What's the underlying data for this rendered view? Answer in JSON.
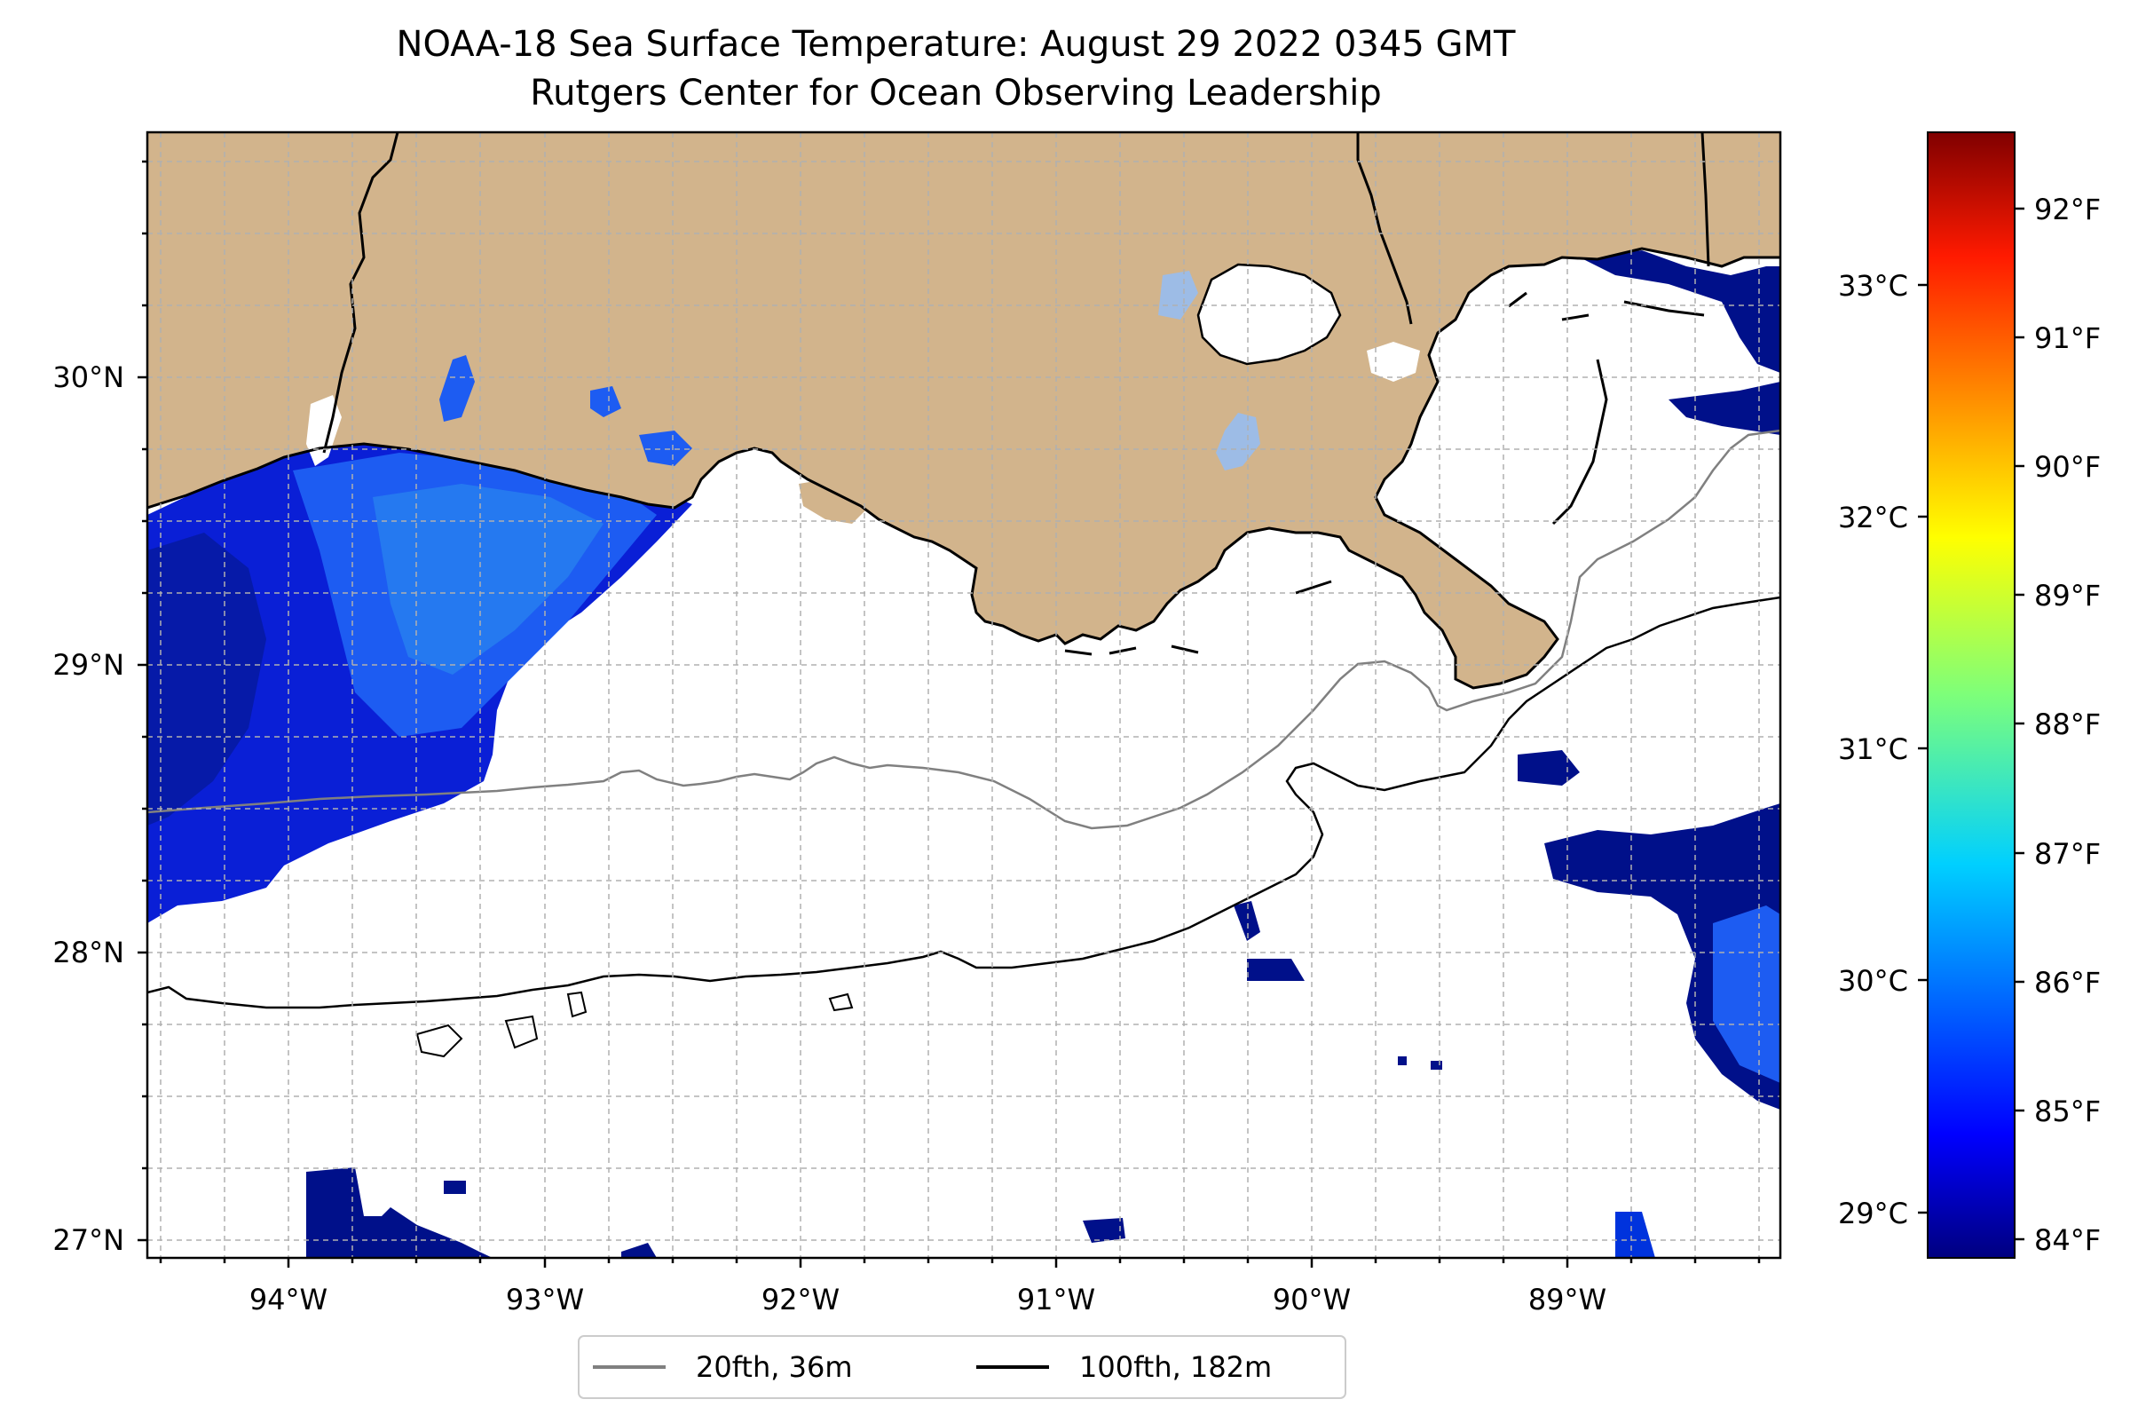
{
  "title": {
    "line1": "NOAA-18 Sea Surface Temperature: August 29 2022 0345 GMT",
    "line2": "Rutgers Center for Ocean Observing Leadership"
  },
  "map": {
    "lon_range": [
      -94.55,
      -88.2
    ],
    "lat_range": [
      26.93,
      30.85
    ],
    "lon_ticks": [
      "94°W",
      "93°W",
      "92°W",
      "91°W",
      "90°W",
      "89°W"
    ],
    "lat_ticks": [
      "27°N",
      "28°N",
      "29°N",
      "30°N"
    ],
    "gridlines": true,
    "land_color": "#d2b48c",
    "lake_color": "#9dbce6",
    "no_data_color": "#ffffff"
  },
  "legend": {
    "placement": "bottom-center",
    "entries": [
      {
        "label": "20fth, 36m",
        "color": "#808080"
      },
      {
        "label": "100fth, 182m",
        "color": "#000000"
      }
    ]
  },
  "colorbar": {
    "colormap": "jet",
    "celsius_ticks": [
      "29°C",
      "30°C",
      "31°C",
      "32°C",
      "33°C"
    ],
    "fahrenheit_ticks": [
      "84°F",
      "85°F",
      "86°F",
      "87°F",
      "88°F",
      "89°F",
      "90°F",
      "91°F",
      "92°F"
    ],
    "range_f": [
      83.8,
      92.6
    ]
  }
}
